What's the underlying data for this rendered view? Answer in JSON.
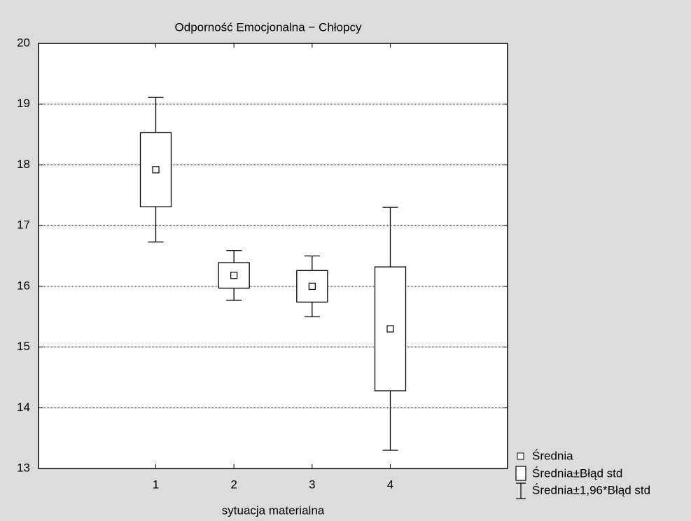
{
  "chart_data": {
    "type": "errorbox",
    "title": "Odporność Emocjonalna − Chłopcy",
    "x_label": "sytuacja materialna",
    "x": [
      1,
      2,
      3,
      4
    ],
    "values": [
      17.92,
      16.18,
      16.0,
      15.3
    ],
    "se": [
      0.61,
      0.21,
      0.26,
      1.02
    ],
    "ci": [
      1.19,
      0.41,
      0.5,
      2.0
    ],
    "xlim": [
      -0.5,
      5.5
    ],
    "xticks": [
      1,
      2,
      3,
      4
    ],
    "ylim": [
      13,
      20
    ],
    "yticks": [
      13,
      14,
      15,
      16,
      17,
      18,
      19,
      20
    ],
    "grid": true,
    "legend": [
      "Średnia",
      "Średnia±Błąd std",
      "Średnia±1,96*Błąd std"
    ],
    "legend_position": "bottom-right"
  }
}
